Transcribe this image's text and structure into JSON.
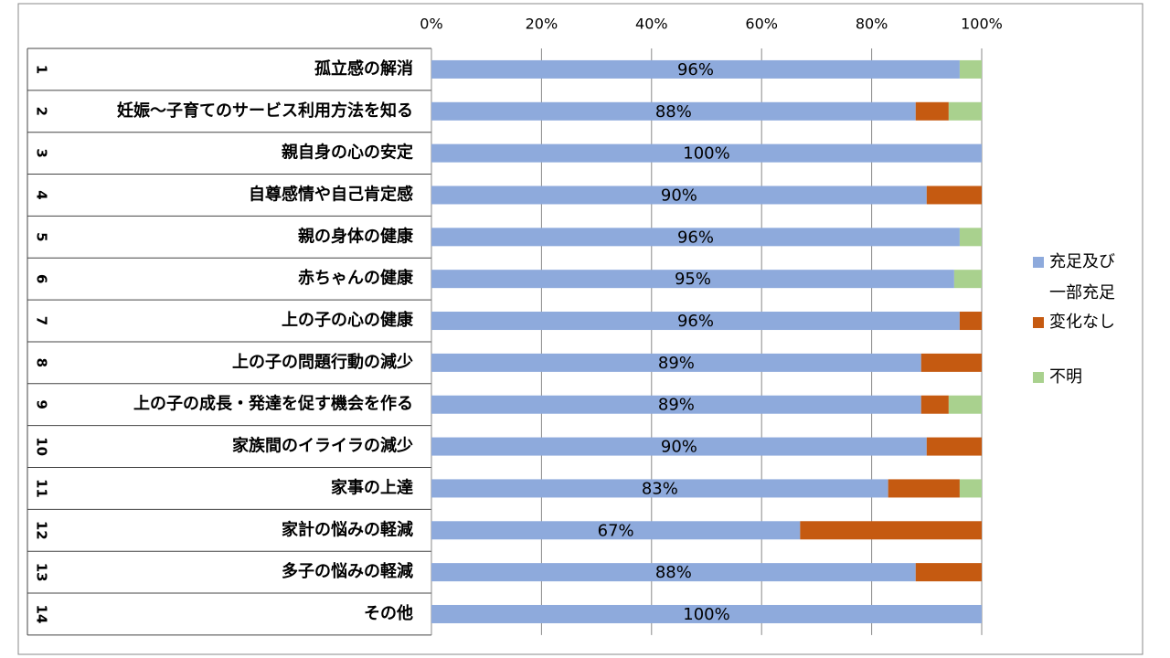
{
  "chart_data": {
    "type": "stacked_bar_horizontal",
    "category_numbers": [
      1,
      2,
      3,
      4,
      5,
      6,
      7,
      8,
      9,
      10,
      11,
      12,
      13,
      14
    ],
    "categories": [
      "孤立感の解消",
      "妊娠～子育てのサービス利用方法を知る",
      "親自身の心の安定",
      "自尊感情や自己肯定感",
      "親の身体の健康",
      "赤ちゃんの健康",
      "上の子の心の健康",
      "上の子の問題行動の減少",
      "上の子の成長・発達を促す機会を作る",
      "家族間のイライラの減少",
      "家事の上達",
      "家計の悩みの軽減",
      "多子の悩みの軽減",
      "その他"
    ],
    "series": [
      {
        "name": "充足及び一部充足",
        "color": "#8eaadc",
        "values": [
          96,
          88,
          100,
          90,
          96,
          95,
          96,
          89,
          89,
          90,
          83,
          67,
          88,
          100
        ],
        "value_labels": [
          "96%",
          "88%",
          "100%",
          "90%",
          "96%",
          "95%",
          "96%",
          "89%",
          "89%",
          "90%",
          "83%",
          "67%",
          "88%",
          "100%"
        ]
      },
      {
        "name": "変化なし",
        "color": "#c55a11",
        "values": [
          0,
          6,
          0,
          10,
          0,
          0,
          4,
          11,
          5,
          10,
          13,
          33,
          12,
          0
        ]
      },
      {
        "name": "不明",
        "color": "#a9d18e",
        "values": [
          4,
          6,
          0,
          0,
          4,
          5,
          0,
          0,
          6,
          0,
          4,
          0,
          0,
          0
        ]
      }
    ],
    "xlim": [
      0,
      100
    ],
    "xticks": [
      {
        "value": 0,
        "label": "0%"
      },
      {
        "value": 20,
        "label": "20%"
      },
      {
        "value": 40,
        "label": "40%"
      },
      {
        "value": 60,
        "label": "60%"
      },
      {
        "value": 80,
        "label": "80%"
      },
      {
        "value": 100,
        "label": "100%"
      }
    ],
    "grid": true
  }
}
